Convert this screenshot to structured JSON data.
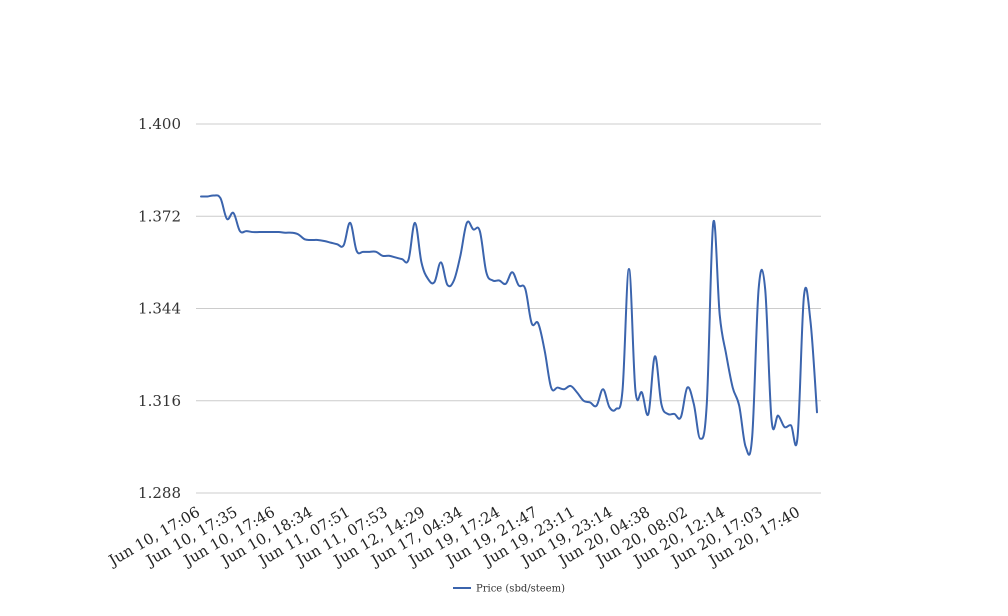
{
  "chart_data": {
    "type": "line",
    "ylim": [
      1.288,
      1.4
    ],
    "y_ticks": [
      "1.400",
      "1.372",
      "1.344",
      "1.316",
      "1.288"
    ],
    "y_tick_values": [
      1.4,
      1.372,
      1.344,
      1.316,
      1.288
    ],
    "x_tick_labels": [
      "Jun 10, 17:06",
      "Jun 10, 17:35",
      "Jun 10, 17:46",
      "Jun 10, 18:34",
      "Jun 11, 07:51",
      "Jun 11, 07:53",
      "Jun 12, 14:29",
      "Jun 17, 04:34",
      "Jun 19, 17:24",
      "Jun 19, 21:47",
      "Jun 19, 23:11",
      "Jun 19, 23:14",
      "Jun 20, 04:38",
      "Jun 20, 08:02",
      "Jun 20, 12:14",
      "Jun 20, 17:03",
      "Jun 20, 17:40"
    ],
    "grid": true,
    "legend_position": "bottom",
    "series": [
      {
        "name": "Price (sbd/steem)",
        "color": "#3b64ad",
        "values": [
          1.378,
          1.378,
          1.3783,
          1.3775,
          1.3712,
          1.373,
          1.3675,
          1.3675,
          1.3672,
          1.3672,
          1.3672,
          1.3672,
          1.3672,
          1.367,
          1.367,
          1.3665,
          1.365,
          1.3648,
          1.3648,
          1.3645,
          1.364,
          1.3635,
          1.3632,
          1.37,
          1.3615,
          1.3612,
          1.3612,
          1.3612,
          1.36,
          1.36,
          1.3595,
          1.359,
          1.3588,
          1.37,
          1.358,
          1.353,
          1.352,
          1.358,
          1.3512,
          1.3525,
          1.36,
          1.37,
          1.368,
          1.3675,
          1.355,
          1.3525,
          1.3525,
          1.3515,
          1.355,
          1.351,
          1.35,
          1.3395,
          1.3395,
          1.3312,
          1.32,
          1.32,
          1.3195,
          1.3205,
          1.3185,
          1.316,
          1.3155,
          1.3145,
          1.3195,
          1.314,
          1.3135,
          1.319,
          1.356,
          1.319,
          1.3185,
          1.312,
          1.3295,
          1.315,
          1.312,
          1.312,
          1.311,
          1.32,
          1.315,
          1.3045,
          1.315,
          1.37,
          1.342,
          1.33,
          1.32,
          1.3145,
          1.302,
          1.305,
          1.35,
          1.35,
          1.31,
          1.3115,
          1.308,
          1.3085,
          1.305,
          1.348,
          1.34,
          1.3125
        ]
      }
    ]
  }
}
